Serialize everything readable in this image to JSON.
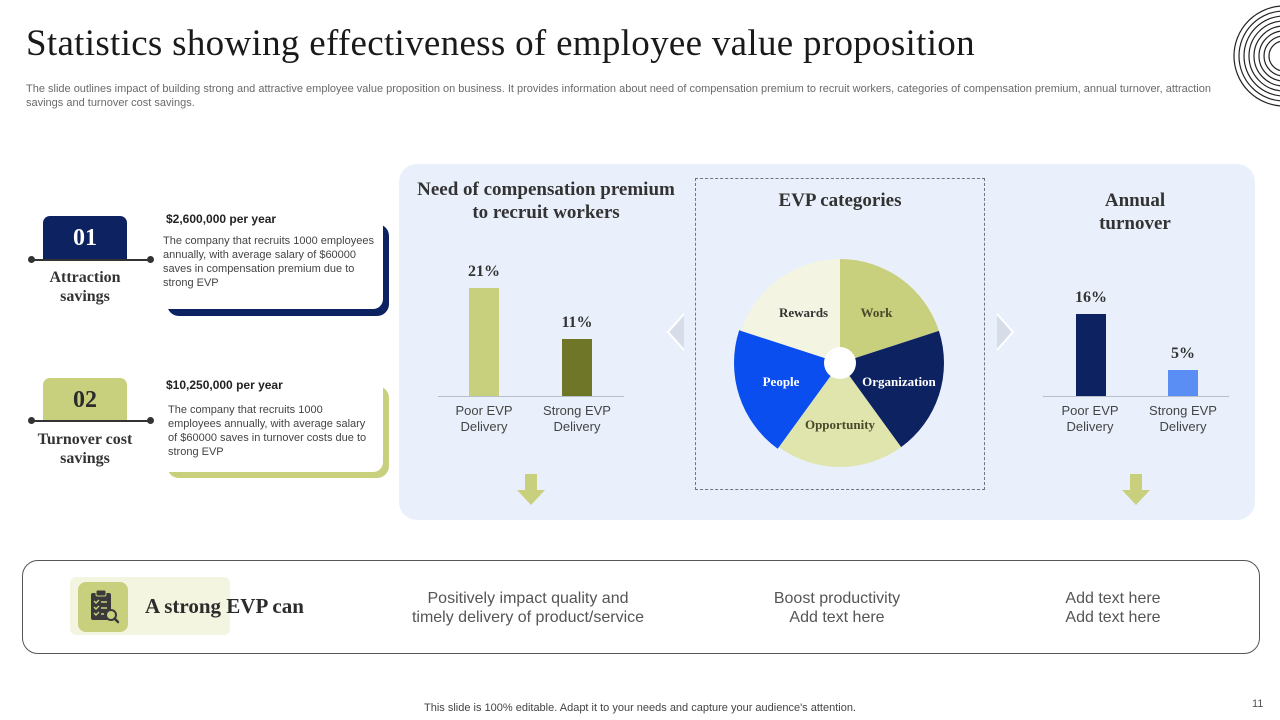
{
  "title": "Statistics showing effectiveness of employee value proposition",
  "subtitle": "The slide outlines impact of building strong and attractive employee value proposition on business. It provides information about need of compensation premium to recruit workers, categories of compensation premium, annual turnover,  attraction savings and turnover cost savings.",
  "left_items": [
    {
      "number": "01",
      "label": "Attraction savings",
      "amount": "$2,600,000  per year",
      "description": "The company that recruits 1000 employees annually, with average salary of $60000 saves in compensation premium due to strong EVP",
      "color": "#0d2260"
    },
    {
      "number": "02",
      "label": "Turnover cost savings",
      "amount": "$10,250,000  per year",
      "description": "The company that recruits 1000 employees annually, with average salary of $60000 saves in turnover costs due to strong EVP",
      "color": "#c9d07d"
    }
  ],
  "sections": {
    "compensation": {
      "title": "Need of compensation premium to recruit workers"
    },
    "categories": {
      "title": "EVP categories"
    },
    "turnover": {
      "title": "Annual turnover"
    }
  },
  "chart_data": [
    {
      "type": "bar",
      "title": "Need of compensation premium to recruit workers",
      "categories": [
        "Poor EVP Delivery",
        "Strong EVP Delivery"
      ],
      "values": [
        21,
        11
      ],
      "value_labels": [
        "21%",
        "11%"
      ],
      "colors": [
        "#c9d07d",
        "#6f7628"
      ],
      "ylim": [
        0,
        21
      ]
    },
    {
      "type": "pie",
      "title": "EVP categories",
      "slices": [
        {
          "label": "Work",
          "value": 20,
          "color": "#c9d07d",
          "text_color": "#4a4a2a"
        },
        {
          "label": "Organization",
          "value": 20,
          "color": "#0d2260",
          "text_color": "#ffffff"
        },
        {
          "label": "Opportunity",
          "value": 20,
          "color": "#e0e4ad",
          "text_color": "#4a4a2a"
        },
        {
          "label": "People",
          "value": 20,
          "color": "#0b4ef0",
          "text_color": "#ffffff"
        },
        {
          "label": "Rewards",
          "value": 20,
          "color": "#f3f4e1",
          "text_color": "#333333"
        }
      ]
    },
    {
      "type": "bar",
      "title": "Annual turnover",
      "categories": [
        "Poor EVP Delivery",
        "Strong EVP Delivery"
      ],
      "values": [
        16,
        5
      ],
      "value_labels": [
        "16%",
        "5%"
      ],
      "colors": [
        "#0d2260",
        "#5a8ef5"
      ],
      "ylim": [
        0,
        21
      ]
    }
  ],
  "bottom": {
    "heading": "A strong EVP can",
    "icon": "clipboard-search-icon",
    "benefits": [
      [
        "Positively impact quality and",
        "timely delivery of product/service"
      ],
      [
        "Boost productivity",
        "Add text here"
      ],
      [
        "Add text here",
        "Add text here"
      ]
    ]
  },
  "footer": "This slide is 100% editable. Adapt it to your needs and capture your audience's attention.",
  "page_number": "11"
}
